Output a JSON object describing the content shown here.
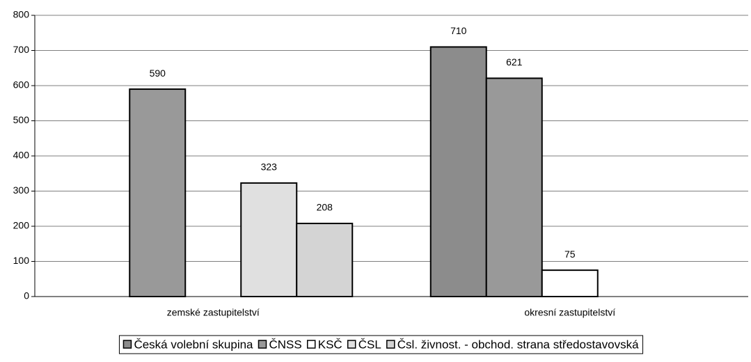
{
  "chart_data": {
    "type": "bar",
    "categories": [
      "zemské zastupitelství",
      "okresní zastupitelství"
    ],
    "series": [
      {
        "name": "Česká volební skupina",
        "color": "#8c8c8c",
        "values": [
          null,
          710
        ]
      },
      {
        "name": "ČNSS",
        "color": "#999999",
        "values": [
          590,
          621
        ]
      },
      {
        "name": "KSČ",
        "color": "#ffffff",
        "values": [
          null,
          75
        ]
      },
      {
        "name": "ČSL",
        "color": "#e0e0e0",
        "values": [
          323,
          null
        ]
      },
      {
        "name": "Čsl. živnost. - obchod. strana středostavovská",
        "color": "#d4d4d4",
        "values": [
          208,
          null
        ]
      }
    ],
    "ylim": [
      0,
      800
    ],
    "yticks": [
      0,
      100,
      200,
      300,
      400,
      500,
      600,
      700,
      800
    ],
    "grid": true
  }
}
